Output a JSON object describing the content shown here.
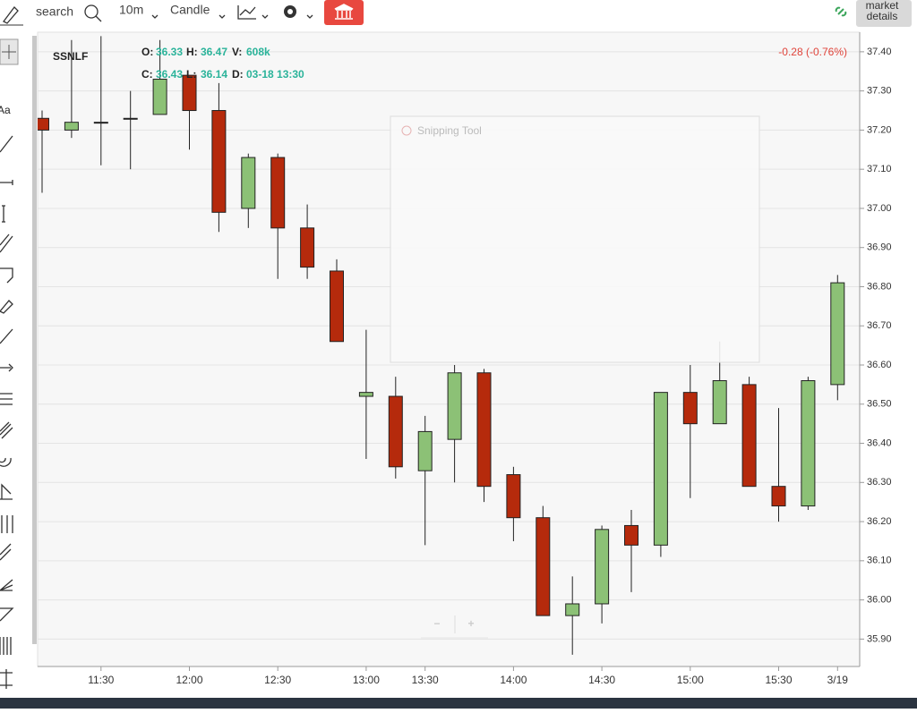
{
  "toolbar": {
    "search": "search",
    "interval": "10m",
    "chart_type": "Candle",
    "market_details": [
      "market",
      "details"
    ]
  },
  "left_tools": {
    "text_tool": "Aa"
  },
  "overlay": {
    "title": "Snipping Tool"
  },
  "zoom": {
    "out": "−",
    "in": "+"
  },
  "chart_data": {
    "type": "candlestick",
    "title": "SSNLF",
    "legend_info": [
      [
        {
          "label": "O:",
          "value": "36.33"
        },
        {
          "label": "H:",
          "value": "36.47"
        },
        {
          "label": "V:",
          "value": "608k"
        }
      ],
      [
        {
          "label": "C:",
          "value": "36.43"
        },
        {
          "label": "L:",
          "value": "36.14"
        },
        {
          "label": "D:",
          "value": "03-18 13:30"
        }
      ]
    ],
    "change_label": "-0.28 (-0.76%)",
    "categories": [
      null,
      null,
      "11:30",
      null,
      null,
      "12:00",
      null,
      null,
      "12:30",
      null,
      null,
      "13:00",
      null,
      "13:30",
      null,
      null,
      "14:00",
      null,
      null,
      "14:30",
      null,
      null,
      "15:00",
      null,
      null,
      "15:30",
      null,
      "3/19"
    ],
    "open": [
      37.23,
      37.2,
      37.22,
      37.23,
      37.24,
      37.34,
      37.25,
      37.0,
      37.13,
      36.95,
      36.84,
      36.52,
      36.52,
      36.33,
      36.41,
      36.58,
      36.32,
      36.21,
      35.96,
      35.99,
      36.19,
      36.14,
      36.53,
      36.45,
      36.55,
      36.29,
      36.24,
      36.55
    ],
    "high": [
      37.25,
      37.43,
      37.44,
      37.3,
      37.43,
      37.34,
      37.32,
      37.14,
      37.14,
      37.01,
      36.87,
      36.69,
      36.57,
      36.47,
      36.6,
      36.59,
      36.34,
      36.24,
      36.06,
      36.19,
      36.23,
      36.53,
      36.6,
      36.66,
      36.57,
      36.49,
      36.57,
      36.83
    ],
    "low": [
      37.04,
      37.18,
      37.11,
      37.1,
      37.24,
      37.15,
      36.94,
      36.95,
      36.82,
      36.82,
      36.66,
      36.36,
      36.31,
      36.14,
      36.3,
      36.25,
      36.15,
      35.96,
      35.86,
      35.94,
      36.02,
      36.11,
      36.26,
      36.45,
      36.29,
      36.2,
      36.23,
      36.51
    ],
    "close": [
      37.2,
      37.22,
      37.22,
      37.23,
      37.33,
      37.25,
      36.99,
      37.13,
      36.95,
      36.85,
      36.66,
      36.53,
      36.34,
      36.43,
      36.58,
      36.29,
      36.21,
      35.96,
      35.99,
      36.18,
      36.14,
      36.53,
      36.45,
      36.56,
      36.29,
      36.24,
      36.56,
      36.81
    ],
    "up_color": "#8cc176",
    "down_color": "#b52a0c",
    "ylim": [
      35.83,
      37.45
    ],
    "yticks": [
      {
        "value": 35.9,
        "label": "35.90"
      },
      {
        "value": 36.0,
        "label": "36.00"
      },
      {
        "value": 36.1,
        "label": "36.10"
      },
      {
        "value": 36.2,
        "label": "36.20"
      },
      {
        "value": 36.3,
        "label": "36.30"
      },
      {
        "value": 36.4,
        "label": "36.40"
      },
      {
        "value": 36.5,
        "label": "36.50"
      },
      {
        "value": 36.6,
        "label": "36.60"
      },
      {
        "value": 36.7,
        "label": "36.70"
      },
      {
        "value": 36.8,
        "label": "36.80"
      },
      {
        "value": 36.9,
        "label": "36.90"
      },
      {
        "value": 37.0,
        "label": "37.00"
      },
      {
        "value": 37.1,
        "label": "37.10"
      },
      {
        "value": 37.2,
        "label": "37.20"
      },
      {
        "value": 37.3,
        "label": "37.30"
      },
      {
        "value": 37.4,
        "label": "37.40"
      }
    ],
    "grid": true
  }
}
